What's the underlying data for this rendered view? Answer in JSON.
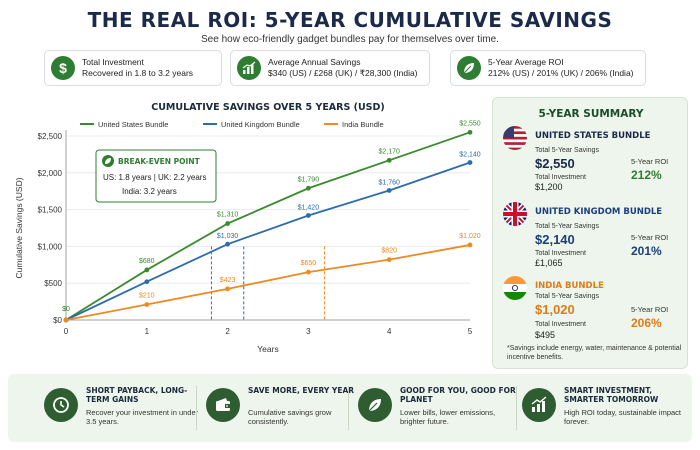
{
  "header": {
    "title": "THE REAL ROI: 5-YEAR CUMULATIVE SAVINGS",
    "subtitle": "See how eco-friendly gadget bundles pay for themselves over time."
  },
  "stat_cards": [
    {
      "icon": "dollar-icon",
      "line1": "Total Investment",
      "line2": "Recovered in 1.8 to 3.2 years"
    },
    {
      "icon": "growth-chart-icon",
      "line1": "Average Annual Savings",
      "line2": "$340 (US) / £268 (UK) / ₹28,300 (India)"
    },
    {
      "icon": "leaf-icon",
      "line1": "5-Year Average ROI",
      "line2": "212% (US) / 201% (UK) / 206% (India)"
    }
  ],
  "chart_data": {
    "type": "line",
    "title": "CUMULATIVE SAVINGS OVER 5 YEARS (USD)",
    "xlabel": "Years",
    "ylabel": "Cumulative Savings (USD)",
    "x": [
      0,
      1,
      2,
      3,
      4,
      5
    ],
    "xlim": [
      0,
      5
    ],
    "ylim": [
      0,
      2500
    ],
    "yticks": [
      0,
      500,
      1000,
      1500,
      2000,
      2500
    ],
    "ytick_labels": [
      "$0",
      "$500",
      "$1,000",
      "$1,500",
      "$2,000",
      "$2,500"
    ],
    "xtick_labels": [
      "0",
      "1",
      "2",
      "3",
      "4",
      "5"
    ],
    "grid": true,
    "legend_position": "top",
    "zero_label": "$0",
    "series": [
      {
        "name": "United States Bundle",
        "color": "#3a8a2e",
        "values": [
          0,
          680,
          1310,
          1790,
          2170,
          2550
        ],
        "labels": [
          "",
          "$680",
          "$1,310",
          "$1,790",
          "$2,170",
          "$2,550"
        ]
      },
      {
        "name": "United Kingdom Bundle",
        "color": "#2b6cb0",
        "values": [
          0,
          520,
          1030,
          1420,
          1760,
          2140
        ],
        "labels": [
          "",
          "",
          "$1,030",
          "$1,420",
          "$1,760",
          "$2,140"
        ]
      },
      {
        "name": "India Bundle",
        "color": "#ee8a22",
        "values": [
          0,
          210,
          423,
          650,
          820,
          1020
        ],
        "labels": [
          "",
          "$210",
          "$423",
          "$650",
          "$820",
          "$1,020"
        ]
      }
    ],
    "breakeven": {
      "title": "BREAK-EVEN POINT",
      "line1": "US: 1.8 years  |  UK: 2.2 years",
      "line2": "India:  3.2 years",
      "markers": [
        {
          "year": 1.8,
          "color": "#3a8a2e"
        },
        {
          "year": 2.2,
          "color": "#2b6cb0"
        },
        {
          "year": 3.2,
          "color": "#ee8a22"
        }
      ]
    }
  },
  "summary": {
    "title": "5-YEAR SUMMARY",
    "countries": [
      {
        "name": "UNITED STATES BUNDLE",
        "flag": "us-flag-icon",
        "savings_label": "Total 5-Year Savings",
        "savings": "$2,550",
        "investment_label": "Total Investment",
        "investment": "$1,200",
        "roi_label": "5-Year ROI",
        "roi": "212%",
        "color": "#1b2a4a",
        "roi_color": "#2e7d32"
      },
      {
        "name": "UNITED KINGDOM BUNDLE",
        "flag": "uk-flag-icon",
        "savings_label": "Total 5-Year Savings",
        "savings": "$2,140",
        "investment_label": "Total Investment",
        "investment": "£1,065",
        "roi_label": "5-Year ROI",
        "roi": "201%",
        "color": "#1b3f7a",
        "roi_color": "#1b3f7a"
      },
      {
        "name": "INDIA BUNDLE",
        "flag": "india-flag-icon",
        "savings_label": "Total 5-Year Savings",
        "savings": "$1,020",
        "investment_label": "Total Investment",
        "investment": "$495",
        "roi_label": "5-Year ROI",
        "roi": "206%",
        "color": "#e07b16",
        "roi_color": "#e07b16"
      }
    ],
    "note": "*Savings include energy, water, maintenance & potential incentive benefits."
  },
  "features": [
    {
      "icon": "clock-icon",
      "title": "SHORT PAYBACK, LONG-TERM GAINS",
      "desc": "Recover your investment in under 3.5 years."
    },
    {
      "icon": "wallet-icon",
      "title": "SAVE MORE, EVERY YEAR",
      "desc": "Cumulative savings grow consistently."
    },
    {
      "icon": "leaf-icon",
      "title": "GOOD FOR YOU, GOOD FOR PLANET",
      "desc": "Lower bills, lower emissions, brighter future."
    },
    {
      "icon": "growth-chart-icon",
      "title": "SMART INVESTMENT, SMARTER TOMORROW",
      "desc": "High ROI today, sustainable impact forever."
    }
  ]
}
